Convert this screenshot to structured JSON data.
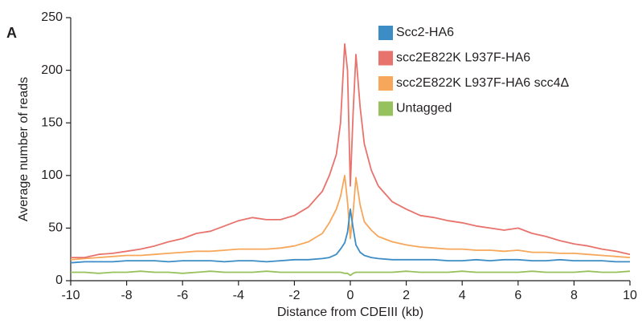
{
  "chart_data": {
    "type": "line",
    "panel_label": "A",
    "x_label": "Distance from CDEIII (kb)",
    "y_label": "Average number of reads",
    "x": [
      -10,
      -9.5,
      -9,
      -8.5,
      -8,
      -7.5,
      -7,
      -6.5,
      -6,
      -5.5,
      -5,
      -4.5,
      -4,
      -3.5,
      -3,
      -2.5,
      -2,
      -1.5,
      -1,
      -0.75,
      -0.5,
      -0.35,
      -0.2,
      -0.1,
      0,
      0.1,
      0.2,
      0.35,
      0.5,
      0.75,
      1,
      1.5,
      2,
      2.5,
      3,
      3.5,
      4,
      4.5,
      5,
      5.5,
      6,
      6.5,
      7,
      7.5,
      8,
      8.5,
      9,
      9.5,
      10
    ],
    "series": [
      {
        "name": "Scc2-HA6",
        "color": "#3c8dc6",
        "values": [
          17,
          18,
          18,
          18,
          19,
          19,
          19,
          18,
          19,
          19,
          19,
          18,
          19,
          19,
          18,
          19,
          20,
          20,
          21,
          22,
          25,
          30,
          36,
          46,
          68,
          50,
          34,
          27,
          24,
          22,
          21,
          20,
          20,
          20,
          20,
          19,
          19,
          20,
          19,
          20,
          20,
          19,
          19,
          20,
          19,
          19,
          19,
          18,
          18
        ]
      },
      {
        "name": "scc2E822K L937F-HA6",
        "color": "#e8736d",
        "values": [
          22,
          22,
          25,
          26,
          28,
          30,
          33,
          37,
          40,
          45,
          47,
          52,
          57,
          60,
          58,
          58,
          62,
          70,
          85,
          100,
          120,
          150,
          225,
          200,
          90,
          160,
          215,
          165,
          130,
          105,
          90,
          75,
          68,
          62,
          60,
          57,
          55,
          52,
          50,
          48,
          50,
          45,
          42,
          38,
          35,
          33,
          30,
          28,
          25
        ]
      },
      {
        "name": "scc2E822K L937F-HA6 scc4Δ",
        "color": "#f6a75a",
        "values": [
          20,
          21,
          22,
          23,
          24,
          24,
          25,
          26,
          27,
          28,
          28,
          29,
          30,
          30,
          30,
          31,
          33,
          37,
          45,
          55,
          68,
          80,
          100,
          75,
          40,
          65,
          98,
          72,
          56,
          48,
          42,
          37,
          34,
          32,
          31,
          30,
          30,
          29,
          29,
          28,
          29,
          27,
          27,
          26,
          26,
          25,
          24,
          23,
          22
        ]
      },
      {
        "name": "Untagged",
        "color": "#97c15d",
        "values": [
          8,
          8,
          7,
          8,
          8,
          9,
          8,
          8,
          7,
          8,
          9,
          8,
          8,
          8,
          9,
          8,
          8,
          8,
          8,
          8,
          8,
          8,
          7,
          7,
          5,
          7,
          8,
          8,
          8,
          8,
          8,
          8,
          9,
          8,
          8,
          8,
          9,
          8,
          8,
          8,
          8,
          9,
          8,
          8,
          8,
          9,
          8,
          8,
          9
        ]
      }
    ],
    "xlim": [
      -10,
      10
    ],
    "xticks": [
      -10,
      -8,
      -6,
      -4,
      -2,
      0,
      2,
      4,
      6,
      8,
      10
    ],
    "ylim": [
      0,
      250
    ],
    "yticks": [
      0,
      50,
      100,
      150,
      200,
      250
    ],
    "legend_position": "upper center"
  }
}
